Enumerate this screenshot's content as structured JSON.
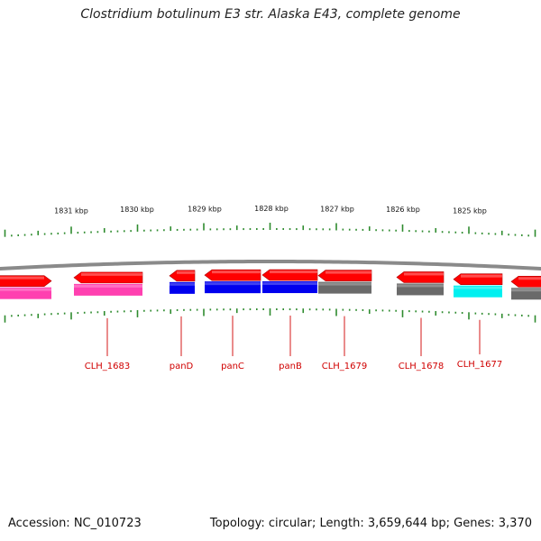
{
  "title": "Clostridium botulinum E3 str. Alaska E43, complete genome",
  "footer": {
    "accession": "Accession: NC_010723",
    "summary": "Topology: circular; Length: 3,659,644 bp; Genes: 3,370"
  },
  "colors": {
    "backbone": "#8a8a8a",
    "tick": "#2e8b2e",
    "label_text": "#d00000",
    "cds": "#ff0000",
    "pink": "#ff40b0",
    "blue": "#0000ee",
    "gray": "#6a6a6a",
    "cyan": "#00f0f0"
  },
  "ruler": {
    "labels": [
      "1831 kbp",
      "1830 kbp",
      "1829 kbp",
      "1828 kbp",
      "1827 kbp",
      "1826 kbp",
      "1825 kbp"
    ]
  },
  "genes": [
    {
      "name": "",
      "cds_color": "#ff0000",
      "func_color": "#ff40b0",
      "direction": "right"
    },
    {
      "name": "CLH_1683",
      "cds_color": "#ff0000",
      "func_color": "#ff40b0",
      "direction": "left"
    },
    {
      "name": "panD",
      "cds_color": "#ff0000",
      "func_color": "#0000ee",
      "direction": "left"
    },
    {
      "name": "panC",
      "cds_color": "#ff0000",
      "func_color": "#0000ee",
      "direction": "left"
    },
    {
      "name": "panB",
      "cds_color": "#ff0000",
      "func_color": "#0000ee",
      "direction": "left"
    },
    {
      "name": "CLH_1679",
      "cds_color": "#ff0000",
      "func_color": "#6a6a6a",
      "direction": "left"
    },
    {
      "name": "CLH_1678",
      "cds_color": "#ff0000",
      "func_color": "#6a6a6a",
      "direction": "left"
    },
    {
      "name": "CLH_1677",
      "cds_color": "#ff0000",
      "func_color": "#00f0f0",
      "direction": "left"
    },
    {
      "name": "",
      "cds_color": "#ff0000",
      "func_color": "#6a6a6a",
      "direction": "left"
    }
  ]
}
